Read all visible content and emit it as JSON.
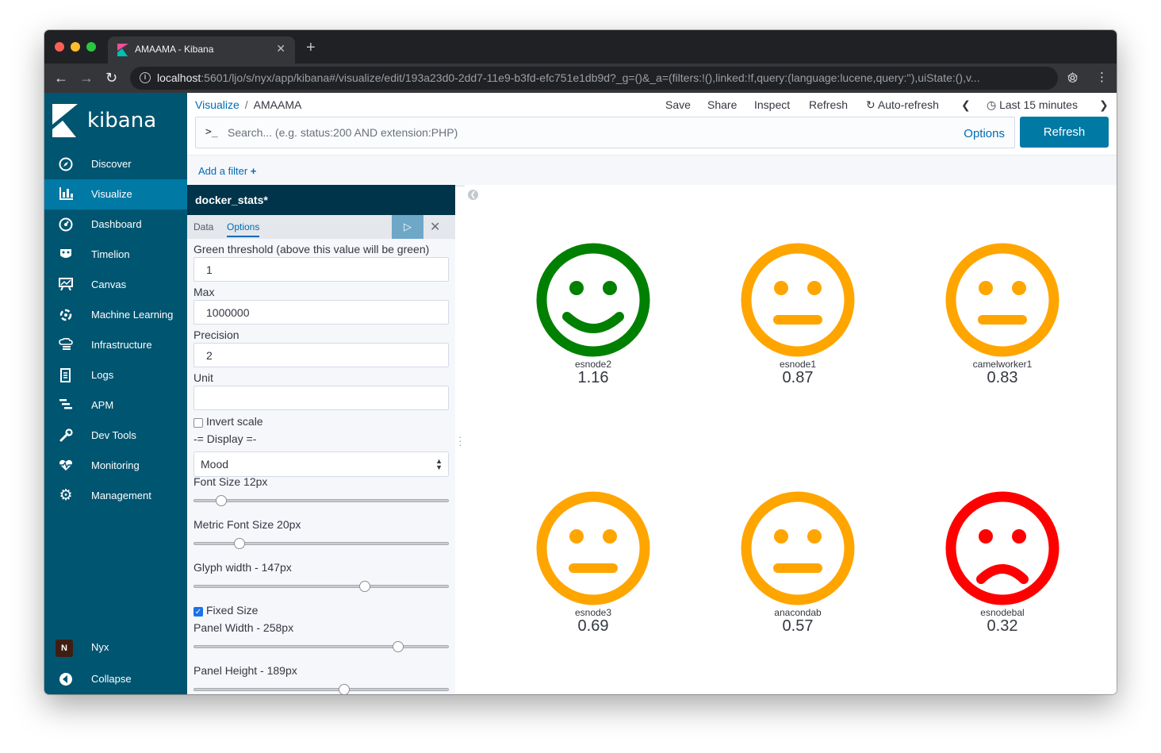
{
  "browser": {
    "tab_title": "AMAAMA - Kibana",
    "url_host": "localhost",
    "url_rest": ":5601/ljo/s/nyx/app/kibana#/visualize/edit/193a23d0-2dd7-11e9-b3fd-efc751e1db9d?_g=()&_a=(filters:!(),linked:!f,query:(language:lucene,query:''),uiState:(),v..."
  },
  "sidebar": {
    "brand": "kibana",
    "items": [
      {
        "label": "Discover",
        "icon": "compass-icon"
      },
      {
        "label": "Visualize",
        "icon": "bar-chart-icon",
        "active": true
      },
      {
        "label": "Dashboard",
        "icon": "gauge-icon"
      },
      {
        "label": "Timelion",
        "icon": "timelion-icon"
      },
      {
        "label": "Canvas",
        "icon": "canvas-icon"
      },
      {
        "label": "Machine Learning",
        "icon": "machine-learning-icon"
      },
      {
        "label": "Infrastructure",
        "icon": "infrastructure-icon"
      },
      {
        "label": "Logs",
        "icon": "logs-icon"
      },
      {
        "label": "APM",
        "icon": "apm-icon"
      },
      {
        "label": "Dev Tools",
        "icon": "wrench-icon"
      },
      {
        "label": "Monitoring",
        "icon": "heartbeat-icon"
      },
      {
        "label": "Management",
        "icon": "gear-icon"
      }
    ],
    "user": {
      "initial": "N",
      "label": "Nyx"
    },
    "collapse_label": "Collapse"
  },
  "header": {
    "breadcrumb_root": "Visualize",
    "breadcrumb_current": "AMAAMA",
    "menu": {
      "save": "Save",
      "share": "Share",
      "inspect": "Inspect",
      "refresh": "Refresh",
      "auto_refresh": "Auto-refresh",
      "time_range": "Last 15 minutes"
    },
    "search_prompt": ">_",
    "search_placeholder": "Search... (e.g. status:200 AND extension:PHP)",
    "options_label": "Options",
    "refresh_button": "Refresh",
    "add_filter": "Add a filter"
  },
  "editor": {
    "index_pattern": "docker_stats*",
    "tabs": {
      "data": "Data",
      "options": "Options"
    },
    "green_threshold_label": "Green threshold (above this value will be green)",
    "green_threshold_value": "1",
    "max_label": "Max",
    "max_value": "1000000",
    "precision_label": "Precision",
    "precision_value": "2",
    "unit_label": "Unit",
    "unit_value": "",
    "invert_scale_label": "Invert scale",
    "invert_scale_checked": false,
    "display_header": "-= Display =-",
    "display_value": "Mood",
    "font_size_label": "Font Size 12px",
    "font_size_fraction": 0.11,
    "metric_font_size_label": "Metric Font Size 20px",
    "metric_font_size_fraction": 0.18,
    "glyph_width_label": "Glyph width - 147px",
    "glyph_width_fraction": 0.67,
    "fixed_size_label": "Fixed Size",
    "fixed_size_checked": true,
    "panel_width_label": "Panel Width - 258px",
    "panel_width_fraction": 0.8,
    "panel_height_label": "Panel Height - 189px",
    "panel_height_fraction": 0.59
  },
  "visualization": {
    "colors": {
      "good": "#008000",
      "neutral": "#ffa500",
      "bad": "#ff0000"
    },
    "faces": [
      {
        "label": "esnode2",
        "value": "1.16",
        "mood": "good"
      },
      {
        "label": "esnode1",
        "value": "0.87",
        "mood": "neutral"
      },
      {
        "label": "camelworker1",
        "value": "0.83",
        "mood": "neutral"
      },
      {
        "label": "esnode3",
        "value": "0.69",
        "mood": "neutral"
      },
      {
        "label": "anacondab",
        "value": "0.57",
        "mood": "neutral"
      },
      {
        "label": "esnodebal",
        "value": "0.32",
        "mood": "bad"
      }
    ]
  }
}
